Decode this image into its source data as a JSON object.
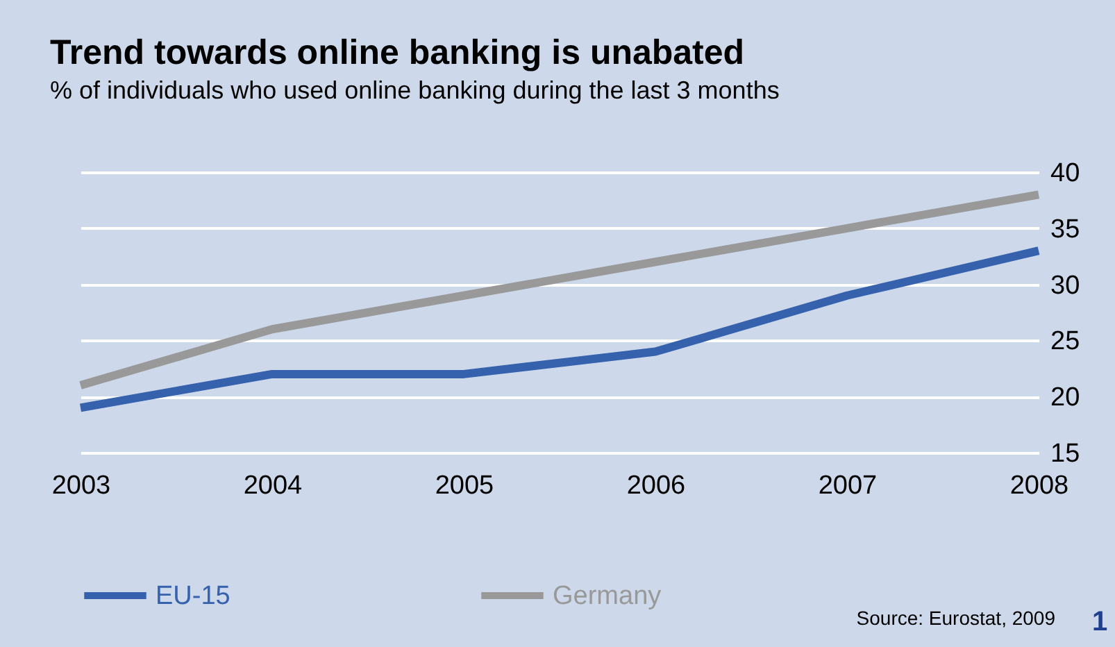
{
  "chart_data": {
    "type": "line",
    "title": "Trend towards online banking is unabated",
    "subtitle": "% of individuals who used online banking during the last 3 months",
    "categories": [
      "2003",
      "2004",
      "2005",
      "2006",
      "2007",
      "2008"
    ],
    "series": [
      {
        "name": "EU-15",
        "color": "#3561ad",
        "values": [
          19,
          22,
          22,
          24,
          29,
          33
        ]
      },
      {
        "name": "Germany",
        "color": "#999999",
        "values": [
          21,
          26,
          29,
          32,
          35,
          38
        ]
      }
    ],
    "ylim": [
      15,
      40
    ],
    "yticks": [
      15,
      20,
      25,
      30,
      35,
      40
    ],
    "grid": "y",
    "legend": "bottom",
    "marker": "none",
    "line_style": "solid",
    "annotations": [
      "Source: Eurostat, 2009",
      "1"
    ]
  }
}
